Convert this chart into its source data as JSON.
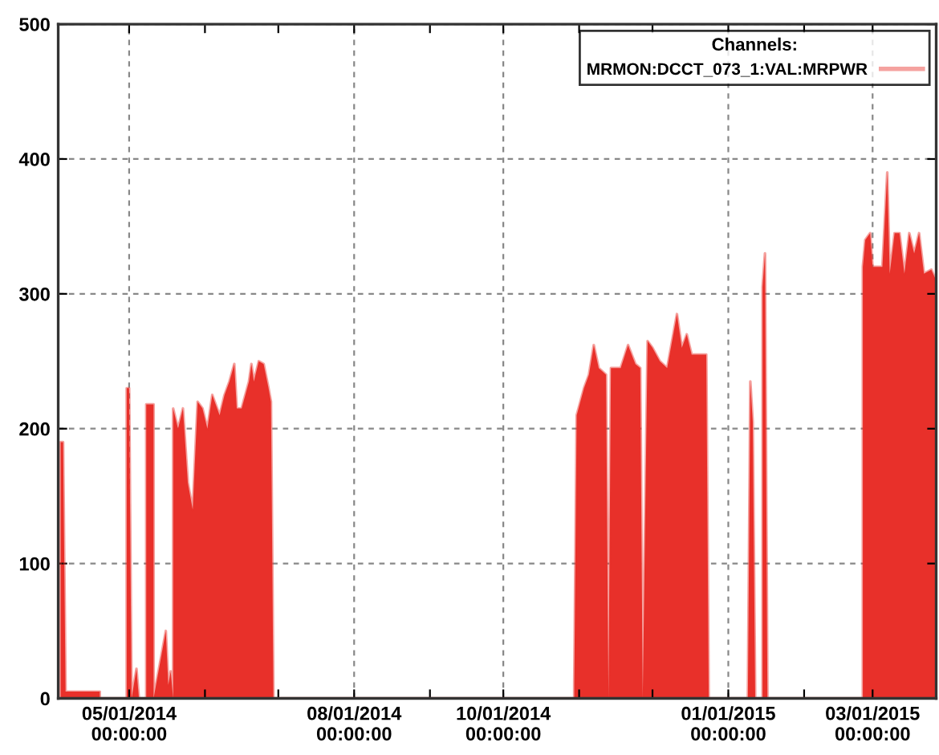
{
  "chart_data": {
    "type": "area",
    "legend_title": "Channels:",
    "legend": "top right",
    "grid": true,
    "ylim": [
      0,
      500
    ],
    "yticks": [
      0,
      100,
      200,
      300,
      400,
      500
    ],
    "xlim": [
      "2014-04-02",
      "2015-03-27"
    ],
    "xticks": [
      {
        "value": "2014-05-01",
        "label": "05/01/2014\n00:00:00"
      },
      {
        "value": "2014-06-01",
        "label": null
      },
      {
        "value": "2014-07-01",
        "label": null
      },
      {
        "value": "2014-08-01",
        "label": "08/01/2014\n00:00:00"
      },
      {
        "value": "2014-09-01",
        "label": null
      },
      {
        "value": "2014-10-01",
        "label": "10/01/2014\n00:00:00"
      },
      {
        "value": "2014-11-01",
        "label": null
      },
      {
        "value": "2014-12-01",
        "label": null
      },
      {
        "value": "2015-01-01",
        "label": "01/01/2015\n00:00:00"
      },
      {
        "value": "2015-02-01",
        "label": null
      },
      {
        "value": "2015-03-01",
        "label": "03/01/2015\n00:00:00"
      }
    ],
    "series": [
      {
        "name": "MRMON:DCCT_073_1:VAL:MRPWR",
        "color": "#e8302a",
        "x": [
          "2014-04-03",
          "2014-04-03",
          "2014-04-04",
          "2014-04-05",
          "2014-04-19",
          "2014-04-19",
          "2014-04-30",
          "2014-04-30",
          "2014-05-01",
          "2014-05-02",
          "2014-05-04",
          "2014-05-05",
          "2014-05-08",
          "2014-05-08",
          "2014-05-11",
          "2014-05-11",
          "2014-05-16",
          "2014-05-17",
          "2014-05-18",
          "2014-05-19",
          "2014-05-19",
          "2014-05-21",
          "2014-05-23",
          "2014-05-25",
          "2014-05-27",
          "2014-05-29",
          "2014-05-31",
          "2014-06-02",
          "2014-06-04",
          "2014-06-07",
          "2014-06-09",
          "2014-06-11",
          "2014-06-13",
          "2014-06-14",
          "2014-06-16",
          "2014-06-19",
          "2014-06-20",
          "2014-06-21",
          "2014-06-23",
          "2014-06-25",
          "2014-06-27",
          "2014-06-28",
          "2014-06-29",
          "2014-10-30",
          "2014-10-30",
          "2014-10-31",
          "2014-11-03",
          "2014-11-05",
          "2014-11-07",
          "2014-11-09",
          "2014-11-12",
          "2014-11-13",
          "2014-11-14",
          "2014-11-18",
          "2014-11-21",
          "2014-11-24",
          "2014-11-26",
          "2014-11-27",
          "2014-11-29",
          "2014-12-01",
          "2014-12-04",
          "2014-12-07",
          "2014-12-11",
          "2014-12-13",
          "2014-12-15",
          "2014-12-17",
          "2014-12-23",
          "2014-12-24",
          "2015-01-09",
          "2015-01-10",
          "2015-01-11",
          "2015-01-12",
          "2015-01-15",
          "2015-01-15",
          "2015-01-16",
          "2015-01-17",
          "2015-02-25",
          "2015-02-25",
          "2015-02-26",
          "2015-02-28",
          "2015-03-01",
          "2015-03-03",
          "2015-03-05",
          "2015-03-07",
          "2015-03-08",
          "2015-03-10",
          "2015-03-12",
          "2015-03-14",
          "2015-03-16",
          "2015-03-18",
          "2015-03-20",
          "2015-03-22",
          "2015-03-25",
          "2015-03-27"
        ],
        "values": [
          0,
          190,
          190,
          5,
          5,
          0,
          0,
          230,
          230,
          0,
          22,
          0,
          0,
          218,
          218,
          0,
          50,
          10,
          20,
          0,
          215,
          200,
          215,
          160,
          140,
          220,
          215,
          200,
          225,
          210,
          225,
          235,
          248,
          215,
          215,
          235,
          248,
          235,
          250,
          248,
          230,
          220,
          0,
          0,
          10,
          210,
          230,
          240,
          262,
          245,
          240,
          0,
          245,
          245,
          262,
          248,
          245,
          0,
          265,
          260,
          250,
          245,
          285,
          260,
          270,
          255,
          255,
          0,
          0,
          235,
          205,
          0,
          0,
          305,
          330,
          0,
          0,
          320,
          340,
          345,
          320,
          320,
          320,
          390,
          315,
          345,
          345,
          315,
          345,
          330,
          345,
          315,
          318,
          310
        ]
      }
    ]
  }
}
